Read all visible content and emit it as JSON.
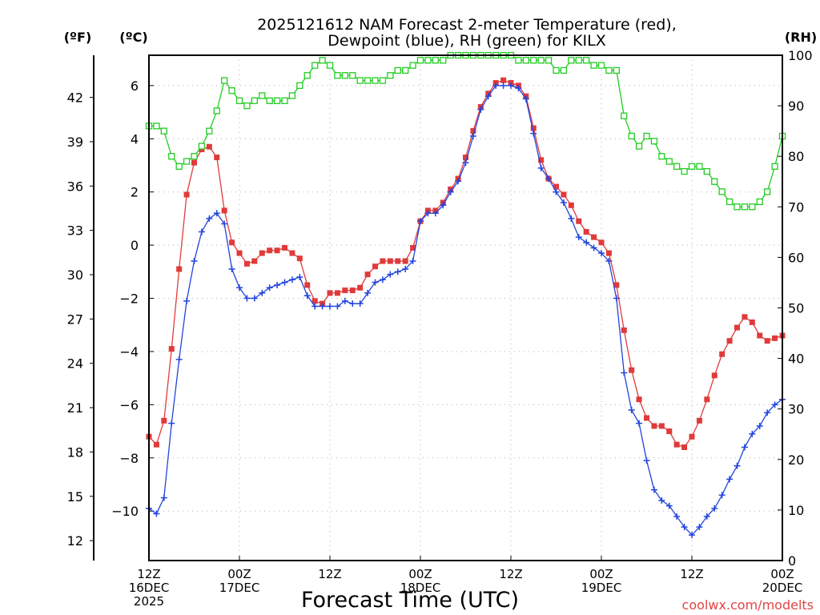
{
  "chart_data": {
    "type": "line",
    "title_line1": "2025121612 NAM Forecast 2-meter Temperature (red),",
    "title_line2": "Dewpoint (blue), RH (green) for KILX",
    "xlabel": "Forecast Time (UTC)",
    "credit": "coolwx.com/modelts",
    "axes": {
      "left_f": {
        "unit": "(ºF)",
        "ticks": [
          "42",
          "39",
          "36",
          "33",
          "30",
          "27",
          "24",
          "21",
          "18",
          "15",
          "12"
        ]
      },
      "left_c": {
        "unit": "(ºC)",
        "range": [
          -11.86,
          7.14
        ],
        "ticks": [
          "6",
          "4",
          "2",
          "0",
          "−2",
          "−4",
          "−6",
          "−8",
          "−10"
        ]
      },
      "right_rh": {
        "unit": "(RH)",
        "range": [
          0,
          100
        ],
        "ticks": [
          "100",
          "90",
          "80",
          "70",
          "60",
          "50",
          "40",
          "30",
          "20",
          "10",
          "0"
        ]
      }
    },
    "x_range_hours": [
      0,
      84
    ],
    "x_ticks": [
      {
        "hour": 0,
        "line1": "12Z",
        "line2": "16DEC",
        "line3": "2025"
      },
      {
        "hour": 12,
        "line1": "00Z",
        "line2": "17DEC",
        "line3": ""
      },
      {
        "hour": 24,
        "line1": "12Z",
        "line2": "",
        "line3": ""
      },
      {
        "hour": 36,
        "line1": "00Z",
        "line2": "18DEC",
        "line3": ""
      },
      {
        "hour": 48,
        "line1": "12Z",
        "line2": "",
        "line3": ""
      },
      {
        "hour": 60,
        "line1": "00Z",
        "line2": "19DEC",
        "line3": ""
      },
      {
        "hour": 72,
        "line1": "12Z",
        "line2": "",
        "line3": ""
      },
      {
        "hour": 84,
        "line1": "00Z",
        "line2": "20DEC",
        "line3": ""
      }
    ],
    "series": [
      {
        "name": "Temperature",
        "color": "#e03a3a",
        "marker": "filled-square",
        "hours": [
          0,
          1,
          2,
          3,
          4,
          5,
          6,
          7,
          8,
          9,
          10,
          11,
          12,
          13,
          14,
          15,
          16,
          17,
          18,
          19,
          20,
          21,
          22,
          23,
          24,
          25,
          26,
          27,
          28,
          29,
          30,
          31,
          32,
          33,
          34,
          35,
          36,
          37,
          38,
          39,
          40,
          41,
          42,
          43,
          44,
          45,
          46,
          47,
          48,
          49,
          50,
          51,
          52,
          53,
          54,
          55,
          56,
          57,
          58,
          59,
          60,
          61,
          62,
          63,
          64,
          65,
          66,
          67,
          68,
          69,
          70,
          71,
          72,
          73,
          74,
          75,
          76,
          77,
          78,
          79,
          80,
          81,
          82,
          83,
          84
        ],
        "values": [
          -7.2,
          -7.5,
          -6.6,
          -3.9,
          -0.9,
          1.9,
          3.1,
          3.6,
          3.7,
          3.3,
          1.3,
          0.1,
          -0.3,
          -0.7,
          -0.6,
          -0.3,
          -0.2,
          -0.2,
          -0.1,
          -0.3,
          -0.5,
          -1.5,
          -2.1,
          -2.2,
          -1.8,
          -1.8,
          -1.7,
          -1.7,
          -1.6,
          -1.1,
          -0.8,
          -0.6,
          -0.6,
          -0.6,
          -0.6,
          -0.1,
          0.9,
          1.3,
          1.3,
          1.6,
          2.1,
          2.5,
          3.3,
          4.3,
          5.2,
          5.7,
          6.1,
          6.2,
          6.1,
          6.0,
          5.6,
          4.4,
          3.2,
          2.5,
          2.2,
          1.9,
          1.5,
          0.9,
          0.5,
          0.3,
          0.1,
          -0.3,
          -1.5,
          -3.2,
          -4.7,
          -5.8,
          -6.5,
          -6.8,
          -6.8,
          -7.0,
          -7.5,
          -7.6,
          -7.2,
          -6.6,
          -5.8,
          -4.9,
          -4.1,
          -3.6,
          -3.1,
          -2.7,
          -2.9,
          -3.4,
          -3.6,
          -3.5,
          -3.4
        ]
      },
      {
        "name": "Dewpoint",
        "color": "#2244dd",
        "marker": "plus",
        "hours": [
          0,
          1,
          2,
          3,
          4,
          5,
          6,
          7,
          8,
          9,
          10,
          11,
          12,
          13,
          14,
          15,
          16,
          17,
          18,
          19,
          20,
          21,
          22,
          23,
          24,
          25,
          26,
          27,
          28,
          29,
          30,
          31,
          32,
          33,
          34,
          35,
          36,
          37,
          38,
          39,
          40,
          41,
          42,
          43,
          44,
          45,
          46,
          47,
          48,
          49,
          50,
          51,
          52,
          53,
          54,
          55,
          56,
          57,
          58,
          59,
          60,
          61,
          62,
          63,
          64,
          65,
          66,
          67,
          68,
          69,
          70,
          71,
          72,
          73,
          74,
          75,
          76,
          77,
          78,
          79,
          80,
          81,
          82,
          83,
          84
        ],
        "values": [
          -9.9,
          -10.1,
          -9.5,
          -6.7,
          -4.3,
          -2.1,
          -0.6,
          0.5,
          1.0,
          1.2,
          0.8,
          -0.9,
          -1.6,
          -2.0,
          -2.0,
          -1.8,
          -1.6,
          -1.5,
          -1.4,
          -1.3,
          -1.2,
          -1.9,
          -2.3,
          -2.3,
          -2.3,
          -2.3,
          -2.1,
          -2.2,
          -2.2,
          -1.8,
          -1.4,
          -1.3,
          -1.1,
          -1.0,
          -0.9,
          -0.6,
          0.9,
          1.2,
          1.2,
          1.5,
          2.0,
          2.4,
          3.1,
          4.1,
          5.1,
          5.6,
          6.0,
          6.0,
          6.0,
          5.9,
          5.5,
          4.2,
          2.9,
          2.5,
          2.0,
          1.6,
          1.0,
          0.3,
          0.1,
          -0.1,
          -0.3,
          -0.6,
          -2.0,
          -4.8,
          -6.2,
          -6.7,
          -8.1,
          -9.2,
          -9.6,
          -9.8,
          -10.2,
          -10.6,
          -10.9,
          -10.6,
          -10.2,
          -9.9,
          -9.4,
          -8.8,
          -8.3,
          -7.6,
          -7.1,
          -6.8,
          -6.3,
          -6.0,
          -5.8
        ]
      },
      {
        "name": "RH",
        "color": "#22cc22",
        "marker": "open-square",
        "hours": [
          0,
          1,
          2,
          3,
          4,
          5,
          6,
          7,
          8,
          9,
          10,
          11,
          12,
          13,
          14,
          15,
          16,
          17,
          18,
          19,
          20,
          21,
          22,
          23,
          24,
          25,
          26,
          27,
          28,
          29,
          30,
          31,
          32,
          33,
          34,
          35,
          36,
          37,
          38,
          39,
          40,
          41,
          42,
          43,
          44,
          45,
          46,
          47,
          48,
          49,
          50,
          51,
          52,
          53,
          54,
          55,
          56,
          57,
          58,
          59,
          60,
          61,
          62,
          63,
          64,
          65,
          66,
          67,
          68,
          69,
          70,
          71,
          72,
          73,
          74,
          75,
          76,
          77,
          78,
          79,
          80,
          81,
          82,
          83,
          84
        ],
        "values": [
          86,
          86,
          85,
          80,
          78,
          79,
          80,
          82,
          85,
          89,
          95,
          93,
          91,
          90,
          91,
          92,
          91,
          91,
          91,
          92,
          94,
          96,
          98,
          99,
          98,
          96,
          96,
          96,
          95,
          95,
          95,
          95,
          96,
          97,
          97,
          98,
          99,
          99,
          99,
          99,
          100,
          100,
          100,
          100,
          100,
          100,
          100,
          100,
          100,
          99,
          99,
          99,
          99,
          99,
          97,
          97,
          99,
          99,
          99,
          98,
          98,
          97,
          97,
          88,
          84,
          82,
          84,
          83,
          80,
          79,
          78,
          77,
          78,
          78,
          77,
          75,
          73,
          71,
          70,
          70,
          70,
          71,
          73,
          78,
          84
        ]
      }
    ]
  }
}
